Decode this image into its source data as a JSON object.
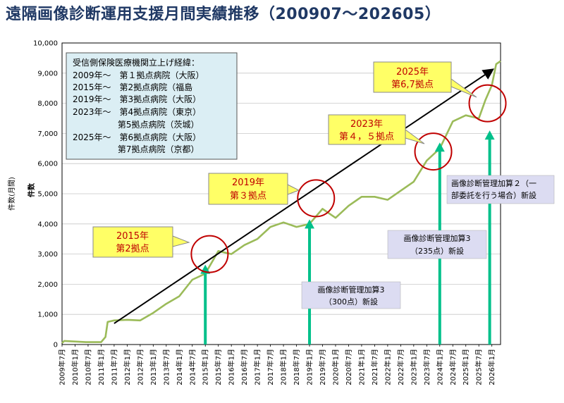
{
  "page": {
    "title": "遠隔画像診断運用支援月間実績推移（200907〜202605）"
  },
  "colors": {
    "line": "#9bbb59",
    "arrow_green": "#00c08a",
    "callout_fill": "#ffff66",
    "callout_text": "#c00000",
    "info_fill": "#dbeef4",
    "note_fill": "#dcdcf2",
    "circle": "#c00000",
    "title": "#1f3864"
  },
  "chart_data": {
    "type": "line",
    "ylabel": "件数(月間)",
    "ylabel_inner": "件数",
    "ylim": [
      0,
      10000
    ],
    "yticks": [
      "0",
      "1,000",
      "2,000",
      "3,000",
      "4,000",
      "5,000",
      "6,000",
      "7,000",
      "8,000",
      "9,000",
      "10,000"
    ],
    "grid": true,
    "x_start": "2009-07",
    "x_end": "2026-05",
    "xtick_labels": [
      "2009年7月",
      "2010年1月",
      "2010年7月",
      "2011年1月",
      "2011年7月",
      "2012年1月",
      "2012年7月",
      "2013年1月",
      "2013年7月",
      "2014年1月",
      "2014年7月",
      "2015年1月",
      "2015年7月",
      "2016年1月",
      "2016年7月",
      "2017年1月",
      "2017年7月",
      "2018年1月",
      "2018年7月",
      "2019年1月",
      "2019年7月",
      "2020年1月",
      "2020年7月",
      "2021年1月",
      "2021年7月",
      "2022年1月",
      "2022年7月",
      "2023年1月",
      "2023年7月",
      "2024年1月",
      "2024年7月",
      "2025年1月",
      "2025年7月",
      "2026年1月"
    ],
    "anchors": [
      {
        "x": "2009-07",
        "y": 50
      },
      {
        "x": "2009-08",
        "y": 120
      },
      {
        "x": "2010-06",
        "y": 80
      },
      {
        "x": "2011-01",
        "y": 80
      },
      {
        "x": "2011-03",
        "y": 250
      },
      {
        "x": "2011-04",
        "y": 750
      },
      {
        "x": "2011-07",
        "y": 800
      },
      {
        "x": "2012-01",
        "y": 820
      },
      {
        "x": "2012-07",
        "y": 800
      },
      {
        "x": "2013-01",
        "y": 1050
      },
      {
        "x": "2013-07",
        "y": 1350
      },
      {
        "x": "2014-01",
        "y": 1600
      },
      {
        "x": "2014-07",
        "y": 2150
      },
      {
        "x": "2015-01",
        "y": 2350
      },
      {
        "x": "2015-07",
        "y": 3100
      },
      {
        "x": "2016-01",
        "y": 3000
      },
      {
        "x": "2016-07",
        "y": 3300
      },
      {
        "x": "2017-01",
        "y": 3500
      },
      {
        "x": "2017-07",
        "y": 3900
      },
      {
        "x": "2018-01",
        "y": 4050
      },
      {
        "x": "2018-07",
        "y": 3900
      },
      {
        "x": "2019-01",
        "y": 4000
      },
      {
        "x": "2019-07",
        "y": 4500
      },
      {
        "x": "2020-01",
        "y": 4200
      },
      {
        "x": "2020-07",
        "y": 4600
      },
      {
        "x": "2021-01",
        "y": 4900
      },
      {
        "x": "2021-07",
        "y": 4900
      },
      {
        "x": "2022-01",
        "y": 4800
      },
      {
        "x": "2022-07",
        "y": 5100
      },
      {
        "x": "2023-01",
        "y": 5400
      },
      {
        "x": "2023-07",
        "y": 6100
      },
      {
        "x": "2024-01",
        "y": 6500
      },
      {
        "x": "2024-07",
        "y": 7400
      },
      {
        "x": "2025-01",
        "y": 7600
      },
      {
        "x": "2025-07",
        "y": 7500
      },
      {
        "x": "2025-10",
        "y": 8100
      },
      {
        "x": "2026-01",
        "y": 8600
      },
      {
        "x": "2026-03",
        "y": 9300
      },
      {
        "x": "2026-05",
        "y": 9400
      }
    ],
    "trend_arrow": {
      "from": {
        "x": "2011-07",
        "y": 700
      },
      "to": {
        "x": "2026-01",
        "y": 9100
      }
    },
    "circles": [
      {
        "x": "2015-03",
        "y": 3000
      },
      {
        "x": "2019-04",
        "y": 4850
      },
      {
        "x": "2023-10",
        "y": 6400
      },
      {
        "x": "2025-11",
        "y": 8000
      }
    ],
    "green_arrows": [
      {
        "x": "2015-01",
        "y_top": 2650
      },
      {
        "x": "2019-01",
        "y_top": 4150
      },
      {
        "x": "2024-01",
        "y_top": 6700
      },
      {
        "x": "2025-12",
        "y_top": 7100
      }
    ]
  },
  "info_box": {
    "lines": [
      "受信側保険医療機関立上げ経緯：",
      "2009年〜　第１拠点病院（大阪）",
      "2015年〜　第2拠点病院（福島",
      "2019年〜　第3拠点病院（大阪）",
      "2023年〜　第4拠点病院（東京）",
      "　　　　　 第5拠点病院（茨城）",
      "2025年〜　第6拠点病院（大阪）",
      "　　　　　 第7拠点病院（京都）"
    ]
  },
  "callouts": [
    {
      "line1": "2015年",
      "line2": "第2拠点"
    },
    {
      "line1": "2019年",
      "line2": "第３拠点"
    },
    {
      "line1": "2023年",
      "line2": "第４，５拠点"
    },
    {
      "line1": "2025年",
      "line2": "第6,7拠点"
    }
  ],
  "notes": [
    {
      "line1": "画像診断管理加算3",
      "line2": "（300点）新設"
    },
    {
      "line1": "画像診断管理加算3",
      "line2": "（235点）新設"
    },
    {
      "line1": "画像診断管理加算２（一",
      "line2": "部委託を行う場合）新設"
    }
  ]
}
